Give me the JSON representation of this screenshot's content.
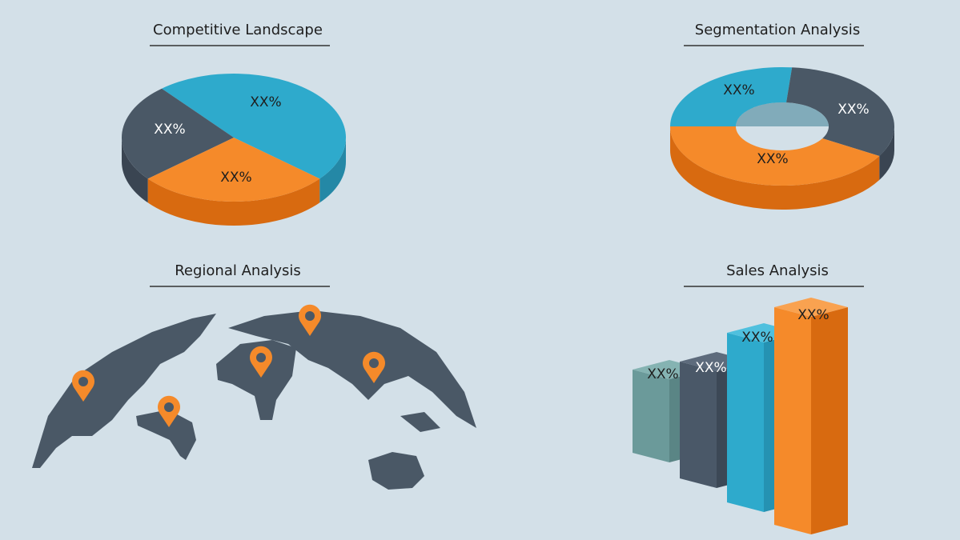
{
  "panels": [
    {
      "title": "Competitive Landscape",
      "labels": [
        "XX%",
        "XX%",
        "XX%"
      ]
    },
    {
      "title": "Segmentation Analysis",
      "labels": [
        "XX%",
        "XX%",
        "XX%"
      ]
    },
    {
      "title": "Regional Analysis"
    },
    {
      "title": "Sales Analysis",
      "labels": [
        "XX%",
        "XX%",
        "XX%",
        "XX%"
      ]
    }
  ]
}
